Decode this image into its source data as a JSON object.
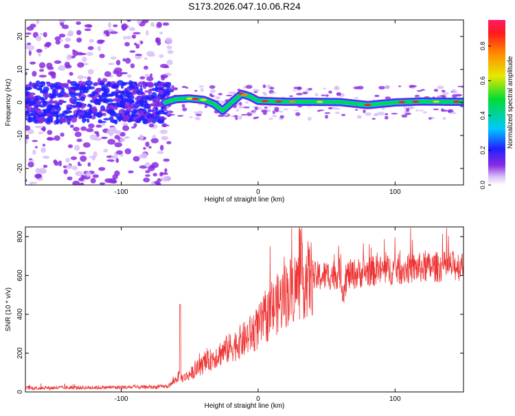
{
  "title": "S173.2026.047.10.06.R24",
  "chart_data": [
    {
      "type": "heatmap",
      "xlabel": "Height of straight line (km)",
      "ylabel": "Frequency (Hz)",
      "xlim": [
        -170,
        150
      ],
      "ylim": [
        -25,
        25
      ],
      "xticks": [
        -100,
        0,
        100
      ],
      "yticks": [
        -20,
        -10,
        0,
        10,
        20
      ],
      "colorbar": {
        "label": "Normalized spectral amplitude",
        "range": [
          0,
          0.95
        ],
        "ticks": [
          "0.0",
          "0.2",
          "0.4",
          "0.6",
          "0.8"
        ],
        "tick_values": [
          0.0,
          0.2,
          0.4,
          0.6,
          0.8
        ]
      },
      "ridge": {
        "x": [
          -68,
          -60,
          -50,
          -40,
          -32,
          -26,
          -18,
          -12,
          -6,
          0,
          20,
          40,
          60,
          80,
          100,
          120,
          140,
          150
        ],
        "freq": [
          0,
          1,
          1.2,
          0.8,
          -0.5,
          -2.5,
          0.5,
          2.6,
          1.8,
          0.5,
          0.2,
          0.2,
          0.1,
          -0.8,
          0,
          0.3,
          0.2,
          0.2
        ],
        "peak_amplitude": 0.95
      },
      "noise_region": {
        "x_range": [
          -170,
          -70
        ],
        "freq_range": [
          -25,
          25
        ]
      }
    },
    {
      "type": "line",
      "xlabel": "Height of straight line (km)",
      "ylabel": "SNR (10 * v/v)",
      "xlim": [
        -170,
        150
      ],
      "ylim": [
        0,
        850
      ],
      "xticks": [
        -100,
        0,
        100
      ],
      "yticks": [
        0,
        200,
        400,
        600,
        800
      ],
      "series": [
        {
          "name": "SNR",
          "color": "#ee3333",
          "x_anchor": [
            -170,
            -75,
            -65,
            -58,
            -55,
            -50,
            -40,
            -30,
            -20,
            -10,
            0,
            10,
            20,
            30,
            40,
            50,
            60,
            62,
            65,
            80,
            100,
            120,
            150
          ],
          "y_anchor": [
            20,
            25,
            30,
            80,
            70,
            90,
            140,
            190,
            230,
            270,
            330,
            420,
            500,
            560,
            590,
            600,
            610,
            520,
            600,
            620,
            630,
            640,
            650
          ]
        }
      ]
    }
  ]
}
